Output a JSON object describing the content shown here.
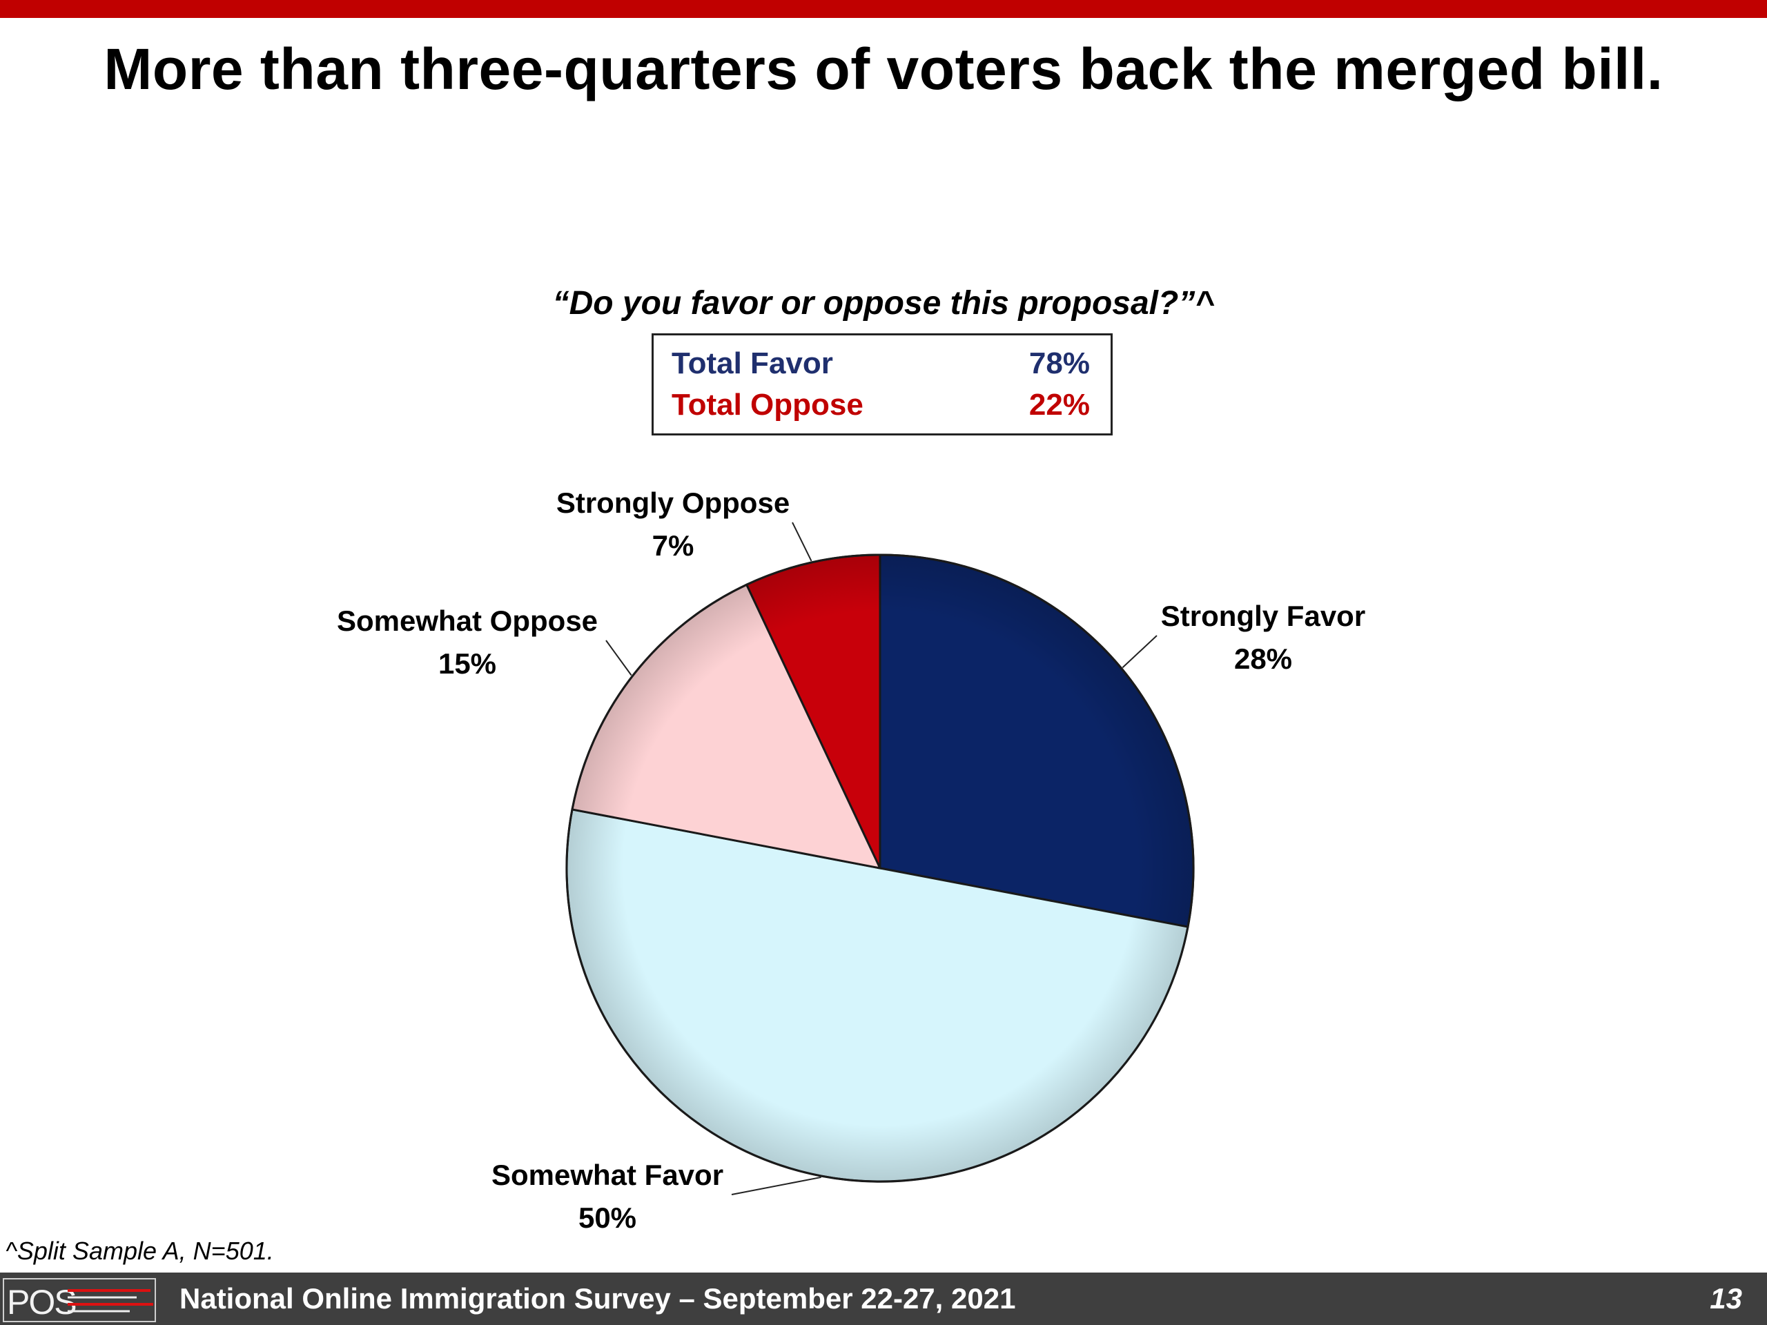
{
  "slide": {
    "title": "More than three-quarters of voters back the merged bill.",
    "question": "“Do you favor or oppose this proposal?”^",
    "accent_color": "#c00000"
  },
  "summary": {
    "rows": [
      {
        "label": "Total Favor",
        "value": "78%",
        "color": "#1f2f6e"
      },
      {
        "label": "Total Oppose",
        "value": "22%",
        "color": "#c00000"
      }
    ]
  },
  "chart_data": {
    "type": "pie",
    "start": "12 o'clock, clockwise",
    "slices": [
      {
        "label": "Strongly Favor",
        "value": 28,
        "display": "28%",
        "color": "#0b2466"
      },
      {
        "label": "Somewhat Favor",
        "value": 50,
        "display": "50%",
        "color": "#d6f5fc"
      },
      {
        "label": "Somewhat Oppose",
        "value": 15,
        "display": "15%",
        "color": "#fdd2d4"
      },
      {
        "label": "Strongly Oppose",
        "value": 7,
        "display": "7%",
        "color": "#c8000a"
      }
    ]
  },
  "footnote": "^Split Sample A, N=501.",
  "footer": {
    "logo": "POS",
    "text": "National Online Immigration Survey – September 22-27, 2021",
    "page_number": "13"
  }
}
